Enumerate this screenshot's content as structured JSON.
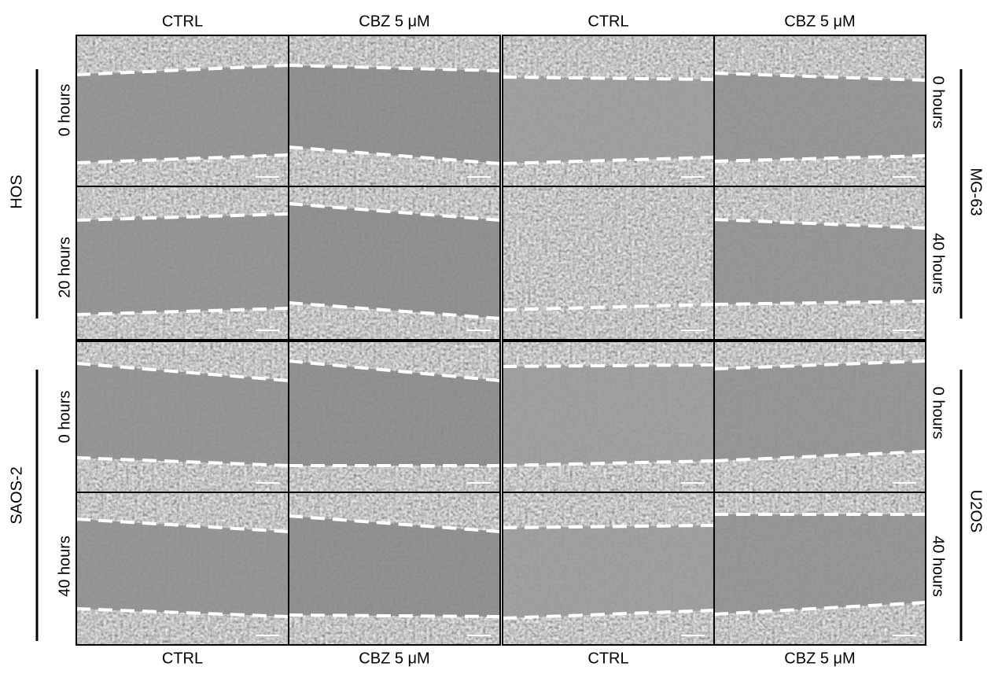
{
  "columns_top": [
    "CTRL",
    "CBZ 5 μM",
    "CTRL",
    "CBZ 5 μM"
  ],
  "columns_bottom": [
    "CTRL",
    "CBZ 5 μM",
    "CTRL",
    "CBZ 5 μM"
  ],
  "groups": [
    {
      "label": "HOS",
      "rows": [
        "0 hours",
        "20 hours"
      ]
    },
    {
      "label": "MG-63",
      "rows": [
        "0 hours",
        "40 hours"
      ]
    },
    {
      "label": "SAOS-2",
      "rows": [
        "0 hours",
        "40 hours"
      ]
    },
    {
      "label": "U2OS",
      "rows": [
        "0 hours",
        "40 hours"
      ]
    }
  ]
}
